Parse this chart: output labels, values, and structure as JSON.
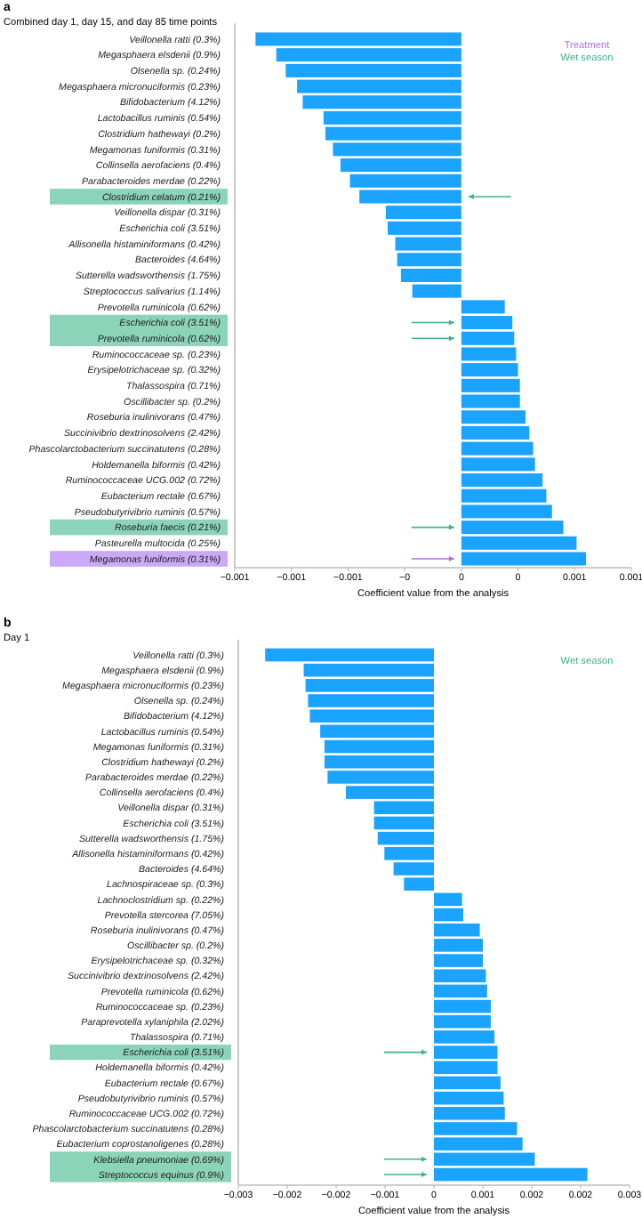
{
  "chart_data": [
    {
      "type": "bar",
      "orientation": "horizontal",
      "title": "a",
      "subtitle": "Combined day 1, day 15, and day 85 time points",
      "xlabel": "Coefficient value from the analysis",
      "color": "#1aa3ff",
      "categories": [
        "Veillonella ratti (0.3%)",
        "Megasphaera elsdenii (0.9%)",
        "Olsenella sp. (0.24%)",
        "Megasphaera micronuciformis (0.23%)",
        "Bifidobacterium (4.12%)",
        "Lactobacillus ruminis (0.54%)",
        "Clostridium hathewayi (0.2%)",
        "Megamonas funiformis (0.31%)",
        "Collinsella aerofaciens (0.4%)",
        "Parabacteroides merdae (0.22%)",
        "Clostridium celatum (0.21%)",
        "Veillonella dispar (0.31%)",
        "Escherichia coli (3.51%)",
        "Allisonella histaminiformans (0.42%)",
        "Bacteroides (4.64%)",
        "Sutterella wadsworthensis (1.75%)",
        "Streptococcus salivarius (1.14%)",
        "Prevotella ruminicola (0.62%)",
        "Escherichia coli (3.51%)",
        "Prevotella ruminicola (0.62%)",
        "Ruminococcaceae sp. (0.23%)",
        "Erysipelotrichaceae sp. (0.32%)",
        "Thalassospira (0.71%)",
        "Oscillibacter sp. (0.2%)",
        "Roseburia inulinivorans (0.47%)",
        "Succinivibrio dextrinosolvens (2.42%)",
        "Phascolarctobacterium succinatutens (0.28%)",
        "Holdemanella biformis (0.42%)",
        "Ruminococcaceae UCG.002 (0.72%)",
        "Eubacterium rectale (0.67%)",
        "Pseudobutyrivibrio ruminis (0.57%)",
        "Roseburia faecis (0.21%)",
        "Pasteurella multocida (0.25%)",
        "Megamonas funiformis (0.31%)"
      ],
      "values": [
        -0.00109,
        -0.00098,
        -0.00093,
        -0.00087,
        -0.00084,
        -0.00073,
        -0.00072,
        -0.00068,
        -0.00064,
        -0.00059,
        -0.00054,
        -0.0004,
        -0.00039,
        -0.00035,
        -0.00034,
        -0.00032,
        -0.00026,
        0.00023,
        0.00027,
        0.00028,
        0.00029,
        0.0003,
        0.00031,
        0.00031,
        0.00034,
        0.00036,
        0.00038,
        0.00039,
        0.00043,
        0.00045,
        0.00048,
        0.00054,
        0.00061,
        0.00066
      ],
      "xlim": [
        -0.0012,
        0.0009
      ],
      "xticks": [
        {
          "value": -0.0012,
          "label": "−0.001"
        },
        {
          "value": -0.0009,
          "label": "−0.001"
        },
        {
          "value": -0.0006,
          "label": "−0.001"
        },
        {
          "value": -0.0003,
          "label": "−0"
        },
        0,
        {
          "value": 0.0003,
          "label": "0"
        },
        {
          "value": 0.0006,
          "label": "0.001"
        },
        {
          "value": 0.0009,
          "label": "0.001"
        }
      ],
      "annotations": [
        "Treatment",
        "Wet season"
      ]
    },
    {
      "type": "bar",
      "orientation": "horizontal",
      "title": "b",
      "subtitle": "Day 1",
      "xlabel": "Coefficient value from the analysis",
      "color": "#1aa3ff",
      "categories": [
        "Veillonella ratti (0.3%)",
        "Megasphaera elsdenii (0.9%)",
        "Megasphaera micronuciformis (0.23%)",
        "Olsenella sp. (0.24%)",
        "Bifidobacterium (4.12%)",
        "Lactobacillus ruminis (0.54%)",
        "Megamonas funiformis (0.31%)",
        "Clostridium hathewayi (0.2%)",
        "Parabacteroides merdae (0.22%)",
        "Collinsella aerofaciens (0.4%)",
        "Veillonella dispar (0.31%)",
        "Escherichia coli (3.51%)",
        "Sutterella wadsworthensis (1.75%)",
        "Allisonella histaminiformans (0.42%)",
        "Bacteroides (4.64%)",
        "Lachnospiraceae sp. (0.3%)",
        "Lachnoclostridium sp. (0.22%)",
        "Prevotella stercorea (7.05%)",
        "Roseburia inulinivorans (0.47%)",
        "Oscillibacter sp. (0.2%)",
        "Erysipelotrichaceae sp. (0.32%)",
        "Succinivibrio dextrinosolvens (2.42%)",
        "Prevotella ruminicola (0.62%)",
        "Ruminococcaceae sp. (0.23%)",
        "Paraprevotella xylaniphila (2.02%)",
        "Thalassospira (0.71%)",
        "Escherichia coli (3.51%)",
        "Holdemanella biformis (0.42%)",
        "Eubacterium rectale (0.67%)",
        "Pseudobutyrivibrio ruminis (0.57%)",
        "Ruminococcaceae UCG.002 (0.72%)",
        "Phascolarctobacterium succinatutens (0.28%)",
        "Eubacterium coprostanoligenes (0.28%)",
        "Klebsiella pneumoniae (0.69%)",
        "Streptococcus equinus (0.9%)"
      ],
      "values": [
        -0.00276,
        -0.00213,
        -0.0021,
        -0.00206,
        -0.00203,
        -0.00186,
        -0.00179,
        -0.00179,
        -0.00174,
        -0.00144,
        -0.00098,
        -0.00098,
        -0.00092,
        -0.00081,
        -0.00066,
        -0.00049,
        0.00046,
        0.00048,
        0.00075,
        0.0008,
        0.0008,
        0.00085,
        0.00087,
        0.00093,
        0.00093,
        0.00099,
        0.00104,
        0.00104,
        0.00109,
        0.00114,
        0.00116,
        0.00136,
        0.00145,
        0.00165,
        0.00251
      ],
      "xlim": [
        -0.0032,
        0.0032
      ],
      "xticks": [
        {
          "value": -0.0032,
          "label": "−0.003"
        },
        {
          "value": -0.0024,
          "label": "−0.002"
        },
        {
          "value": -0.0016,
          "label": "−0.002"
        },
        {
          "value": -0.0008,
          "label": "−0.001"
        },
        0,
        {
          "value": 0.0008,
          "label": "0.001"
        },
        {
          "value": 0.0016,
          "label": "0.002"
        },
        {
          "value": 0.0024,
          "label": "0.002"
        },
        {
          "value": 0.0032,
          "label": "0.003"
        }
      ],
      "annotations": [
        "Wet season"
      ]
    }
  ]
}
